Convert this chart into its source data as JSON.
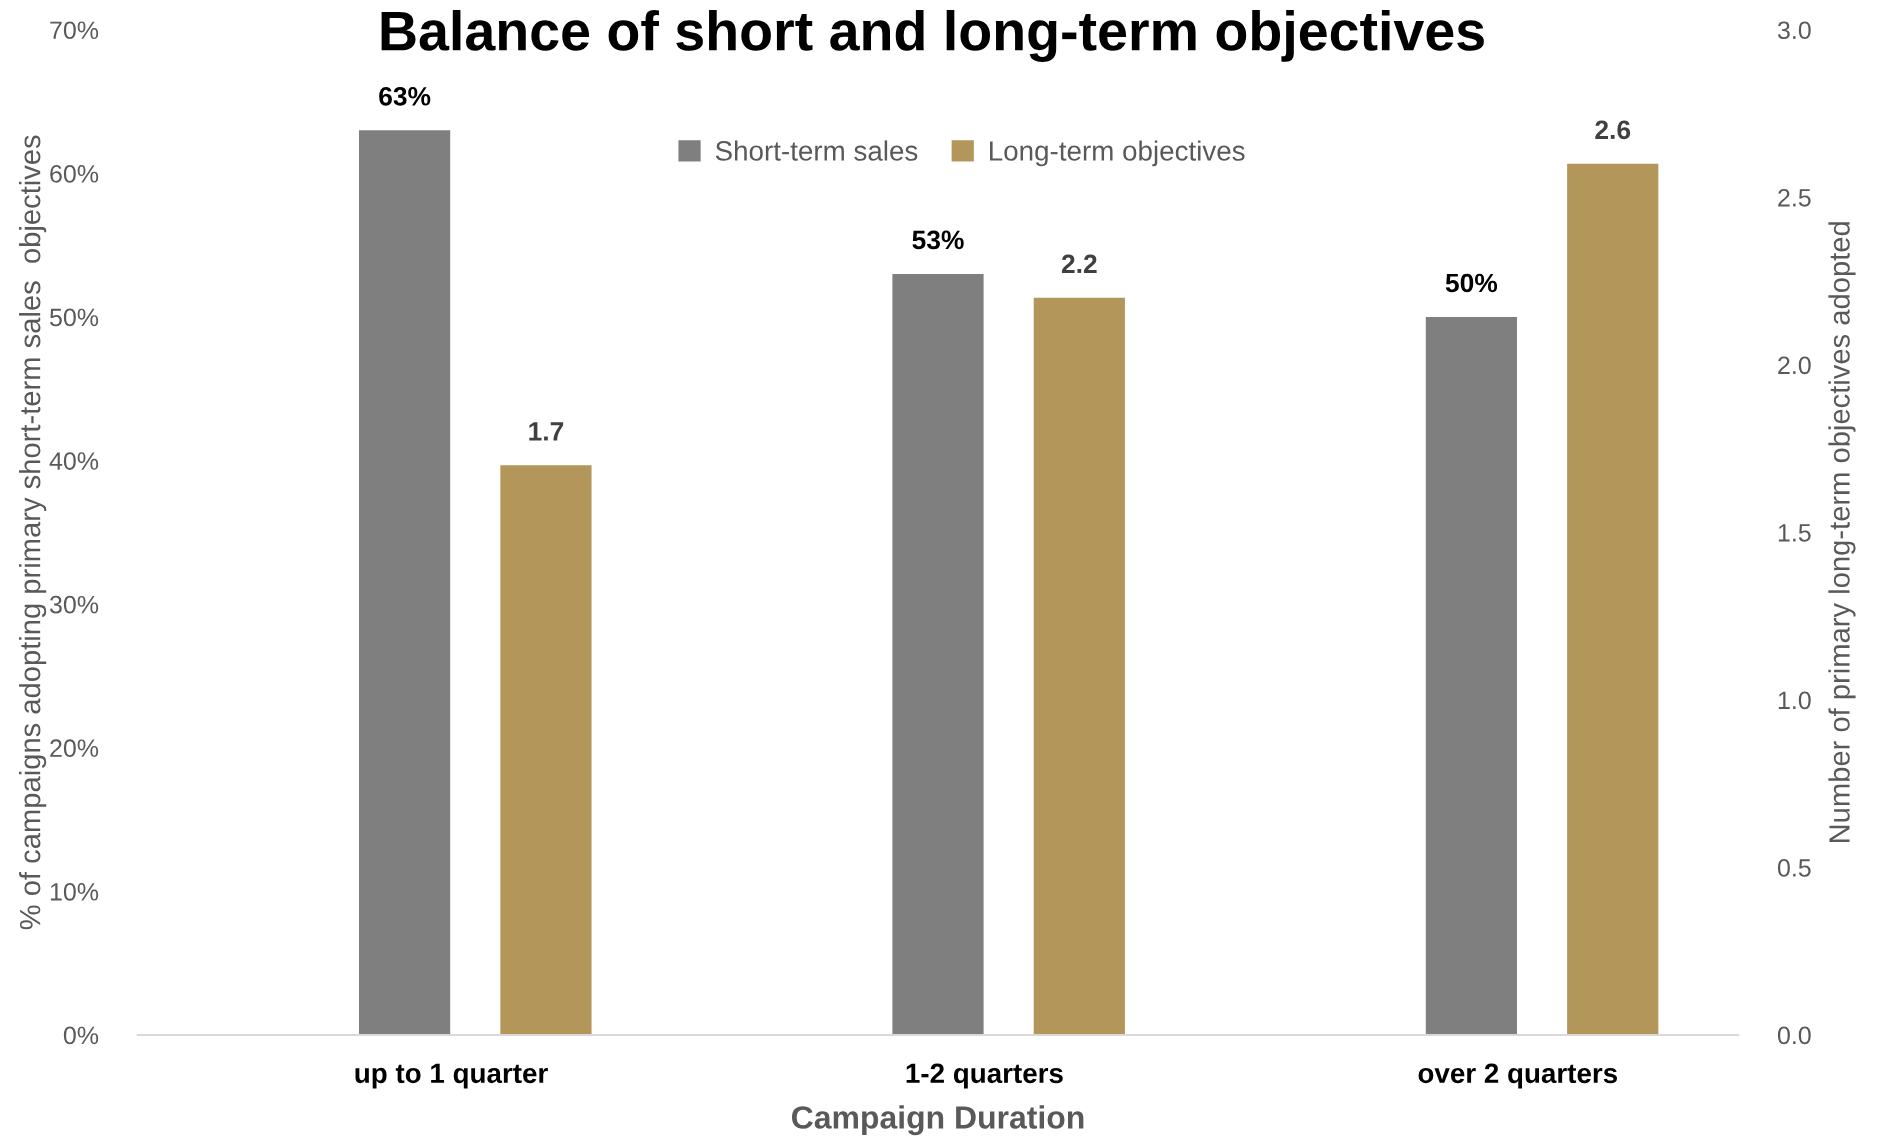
{
  "chart_data": {
    "type": "bar",
    "title": "Balance of short and long-term objectives",
    "xlabel": "Campaign Duration",
    "ylabel": "% of campaigns adopting primary short-term sales  objectives",
    "y2label": "Number of primary long-term objectives adopted",
    "categories": [
      "up to 1 quarter",
      "1-2 quarters",
      "over 2 quarters"
    ],
    "series": [
      {
        "name": "Short-term sales",
        "color": "#7f7f7f",
        "values": [
          63,
          53,
          50
        ],
        "value_labels": [
          "63%",
          "53%",
          "50%"
        ]
      },
      {
        "name": "Long-term objectives",
        "color": "#b3975a",
        "values": [
          1.7,
          2.2,
          2.6
        ],
        "axis": "y2",
        "value_labels": [
          "1.7",
          "2.2",
          "2.6"
        ]
      }
    ],
    "ylim": [
      0,
      70
    ],
    "yticks": [
      {
        "value": 0,
        "label": "0%"
      },
      {
        "value": 10,
        "label": "10%"
      },
      {
        "value": 20,
        "label": "20%"
      },
      {
        "value": 30,
        "label": "30%"
      },
      {
        "value": 40,
        "label": "40%"
      },
      {
        "value": 50,
        "label": "50%"
      },
      {
        "value": 60,
        "label": "60%"
      },
      {
        "value": 70,
        "label": "70%"
      }
    ],
    "y2lim": [
      0,
      3
    ],
    "y2ticks": [
      {
        "value": 0,
        "label": "0.0"
      },
      {
        "value": 0.5,
        "label": "0.5"
      },
      {
        "value": 1,
        "label": "1.0"
      },
      {
        "value": 1.5,
        "label": "1.5"
      },
      {
        "value": 2,
        "label": "2.0"
      },
      {
        "value": 2.5,
        "label": "2.5"
      },
      {
        "value": 3,
        "label": "3.0"
      }
    ],
    "legend": "top"
  }
}
